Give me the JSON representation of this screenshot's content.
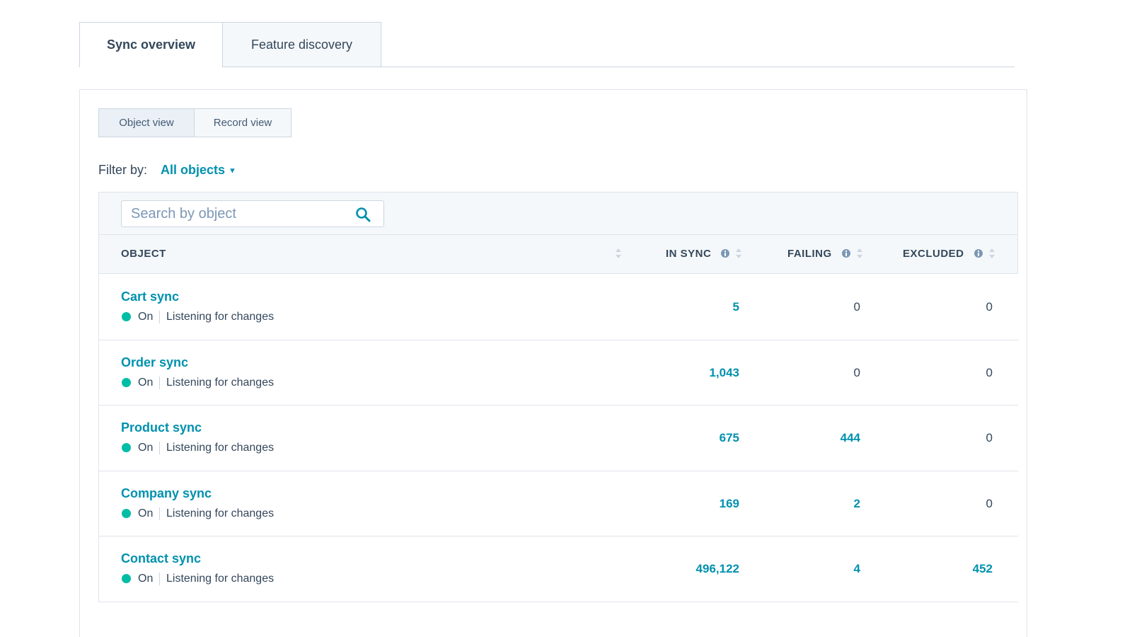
{
  "tabs": [
    "Sync overview",
    "Feature discovery"
  ],
  "view_toggle": [
    "Object view",
    "Record view"
  ],
  "filter": {
    "label": "Filter by:",
    "value": "All objects"
  },
  "search": {
    "placeholder": "Search by object"
  },
  "table": {
    "columns": [
      "OBJECT",
      "IN SYNC",
      "FAILING",
      "EXCLUDED"
    ],
    "rows": [
      {
        "name": "Cart sync",
        "status": "On",
        "detail": "Listening for changes",
        "in_sync": "5",
        "failing": "0",
        "excluded": "0"
      },
      {
        "name": "Order sync",
        "status": "On",
        "detail": "Listening for changes",
        "in_sync": "1,043",
        "failing": "0",
        "excluded": "0"
      },
      {
        "name": "Product sync",
        "status": "On",
        "detail": "Listening for changes",
        "in_sync": "675",
        "failing": "444",
        "excluded": "0"
      },
      {
        "name": "Company sync",
        "status": "On",
        "detail": "Listening for changes",
        "in_sync": "169",
        "failing": "2",
        "excluded": "0"
      },
      {
        "name": "Contact sync",
        "status": "On",
        "detail": "Listening for changes",
        "in_sync": "496,122",
        "failing": "4",
        "excluded": "452"
      }
    ]
  }
}
